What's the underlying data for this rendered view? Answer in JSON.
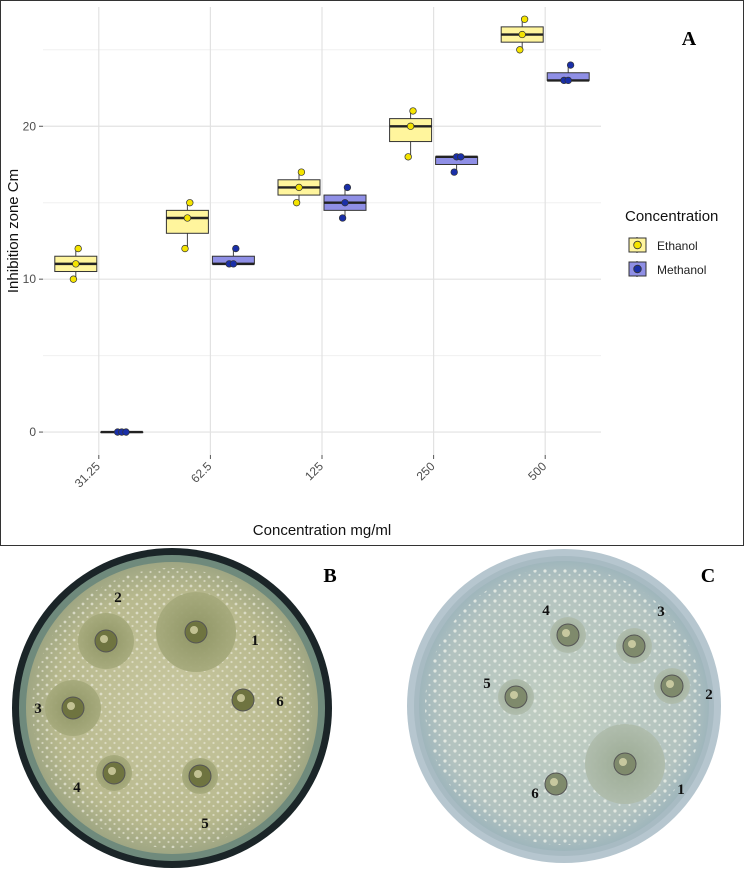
{
  "chart_data": {
    "type": "boxplot",
    "panel_label": "A",
    "xlabel": "Concentration mg/ml",
    "ylabel": "Inhibition zone Cm",
    "categories": [
      "31.25",
      "62.5",
      "125",
      "250",
      "500"
    ],
    "ylim": [
      -1.5,
      27.8
    ],
    "yticks": [
      0,
      10,
      20
    ],
    "grid": true,
    "legend": {
      "title": "Concentration",
      "placement": "right"
    },
    "series": [
      {
        "name": "Ethanol",
        "color": "#fff59d",
        "point_color": "#f5e400",
        "boxes": [
          {
            "min": 10,
            "q1": 10.5,
            "median": 11,
            "q3": 11.5,
            "max": 12
          },
          {
            "min": 12,
            "q1": 13,
            "median": 14,
            "q3": 14.5,
            "max": 15
          },
          {
            "min": 15,
            "q1": 15.5,
            "median": 16,
            "q3": 16.5,
            "max": 17
          },
          {
            "min": 18,
            "q1": 19,
            "median": 20,
            "q3": 20.5,
            "max": 21
          },
          {
            "min": 25,
            "q1": 25.5,
            "median": 26,
            "q3": 26.5,
            "max": 27
          }
        ],
        "points": [
          [
            10,
            11,
            12
          ],
          [
            12,
            14,
            15
          ],
          [
            15,
            16,
            17
          ],
          [
            18,
            20,
            21
          ],
          [
            25,
            26,
            27
          ]
        ]
      },
      {
        "name": "Methanol",
        "color": "#8f8fe6",
        "point_color": "#1a2fa8",
        "boxes": [
          {
            "min": 0,
            "q1": 0,
            "median": 0,
            "q3": 0,
            "max": 0
          },
          {
            "min": 11,
            "q1": 11,
            "median": 11,
            "q3": 11.5,
            "max": 12
          },
          {
            "min": 14,
            "q1": 14.5,
            "median": 15,
            "q3": 15.5,
            "max": 16
          },
          {
            "min": 17,
            "q1": 17.5,
            "median": 18,
            "q3": 18,
            "max": 18
          },
          {
            "min": 23,
            "q1": 23,
            "median": 23,
            "q3": 23.5,
            "max": 24
          }
        ],
        "points": [
          [
            0,
            0,
            0
          ],
          [
            11,
            11,
            12
          ],
          [
            14,
            15,
            16
          ],
          [
            17,
            18,
            18
          ],
          [
            23,
            23,
            24
          ]
        ]
      }
    ]
  },
  "plates": [
    {
      "panel_label": "B",
      "wells": [
        {
          "label": "1",
          "zone": "large"
        },
        {
          "label": "2",
          "zone": "medium"
        },
        {
          "label": "3",
          "zone": "medium"
        },
        {
          "label": "4",
          "zone": "small"
        },
        {
          "label": "5",
          "zone": "small"
        },
        {
          "label": "6",
          "zone": "none"
        }
      ]
    },
    {
      "panel_label": "C",
      "wells": [
        {
          "label": "1",
          "zone": "large"
        },
        {
          "label": "2",
          "zone": "small"
        },
        {
          "label": "3",
          "zone": "small"
        },
        {
          "label": "4",
          "zone": "small"
        },
        {
          "label": "5",
          "zone": "small"
        },
        {
          "label": "6",
          "zone": "none"
        }
      ]
    }
  ]
}
